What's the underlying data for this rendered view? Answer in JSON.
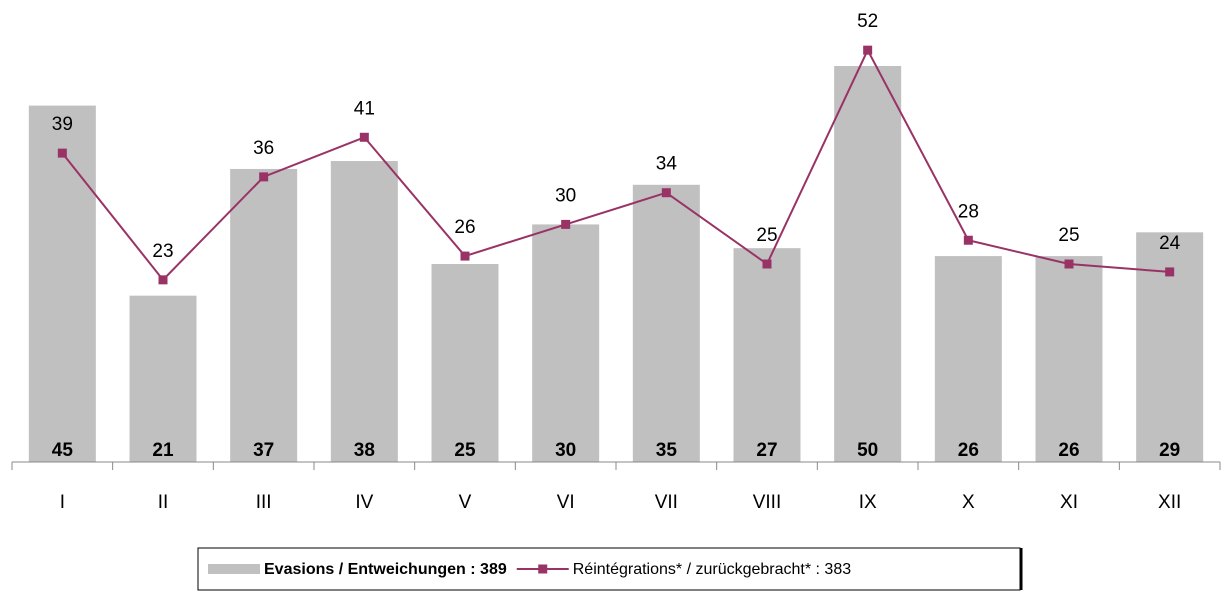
{
  "chart_data": {
    "type": "bar_line",
    "categories": [
      "I",
      "II",
      "III",
      "IV",
      "V",
      "VI",
      "VII",
      "VIII",
      "IX",
      "X",
      "XI",
      "XII"
    ],
    "series": [
      {
        "name": "Evasions / Entweichungen : 389",
        "type": "bar",
        "color": "#c0c0c0",
        "values": [
          45,
          21,
          37,
          38,
          25,
          30,
          35,
          27,
          50,
          26,
          26,
          29
        ]
      },
      {
        "name": "Réintégrations* / zurückgebracht* : 383",
        "type": "line",
        "color": "#993366",
        "values": [
          39,
          23,
          36,
          41,
          26,
          30,
          34,
          25,
          52,
          28,
          25,
          24
        ]
      }
    ],
    "legend": "bottom"
  }
}
